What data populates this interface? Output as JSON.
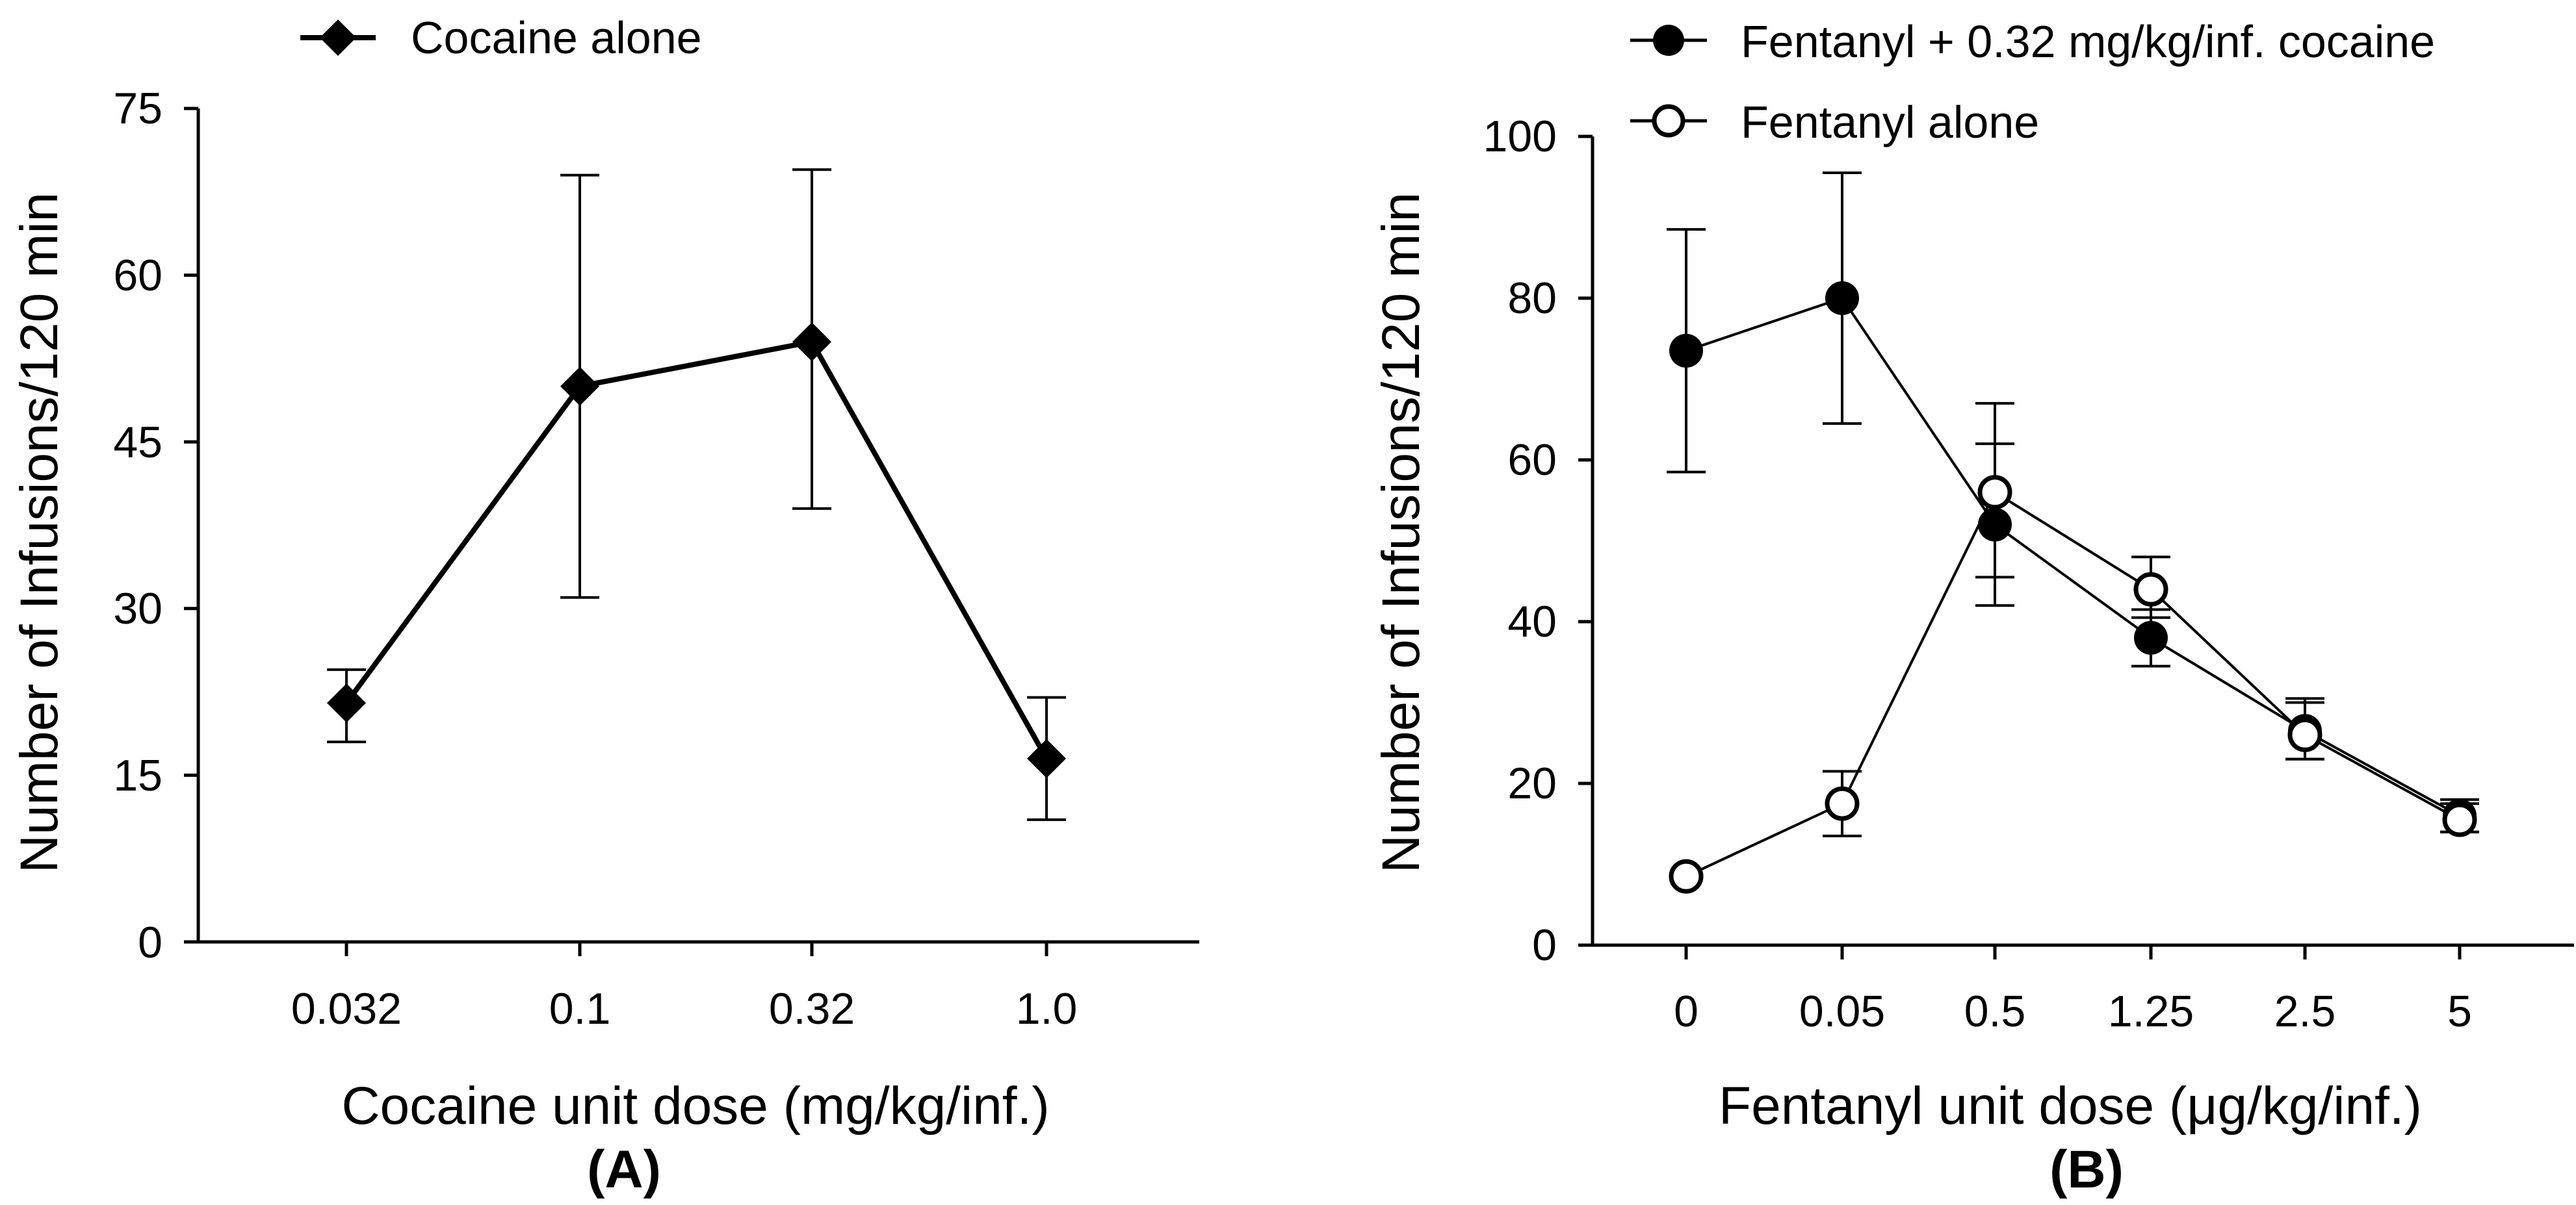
{
  "chart_data": [
    {
      "panel": "(A)",
      "type": "line",
      "title": "",
      "xlabel": "Cocaine unit dose (mg/kg/inf.)",
      "ylabel": "Number of Infusions/120 min",
      "categories": [
        "0.032",
        "0.1",
        "0.32",
        "1.0"
      ],
      "yticks": [
        "0",
        "15",
        "30",
        "45",
        "60",
        "75"
      ],
      "ylim": [
        0,
        75
      ],
      "grid": false,
      "legend_position": "top",
      "series": [
        {
          "name": "Cocaine alone",
          "marker": "diamond-filled",
          "values": [
            21.5,
            50,
            54,
            16.5
          ],
          "error_low": [
            18,
            31,
            39,
            11
          ],
          "error_high": [
            24.5,
            69,
            69.5,
            22
          ]
        }
      ]
    },
    {
      "panel": "(B)",
      "type": "line",
      "title": "",
      "xlabel": "Fentanyl unit dose (μg/kg/inf.)",
      "ylabel": "Number of Infusions/120 min",
      "categories": [
        "0",
        "0.05",
        "0.5",
        "1.25",
        "2.5",
        "5"
      ],
      "yticks": [
        "0",
        "20",
        "40",
        "60",
        "80",
        "100"
      ],
      "ylim": [
        0,
        100
      ],
      "grid": false,
      "legend_position": "top-right",
      "series": [
        {
          "name": "Fentanyl + 0.32 mg/kg/inf. cocaine",
          "marker": "circle-filled",
          "values": [
            73.5,
            80,
            52,
            38,
            26.5,
            16
          ],
          "error_low": [
            58.5,
            64.5,
            42,
            34.5,
            23,
            14
          ],
          "error_high": [
            88.5,
            95.5,
            62,
            41.5,
            30,
            18
          ]
        },
        {
          "name": "Fentanyl alone",
          "marker": "circle-open",
          "values": [
            8.5,
            17.5,
            56,
            44,
            26,
            15.5
          ],
          "error_low": [
            8.5,
            13.5,
            45.5,
            40.5,
            23,
            14
          ],
          "error_high": [
            8.5,
            21.5,
            67,
            48,
            30.5,
            17.5
          ]
        }
      ]
    }
  ]
}
